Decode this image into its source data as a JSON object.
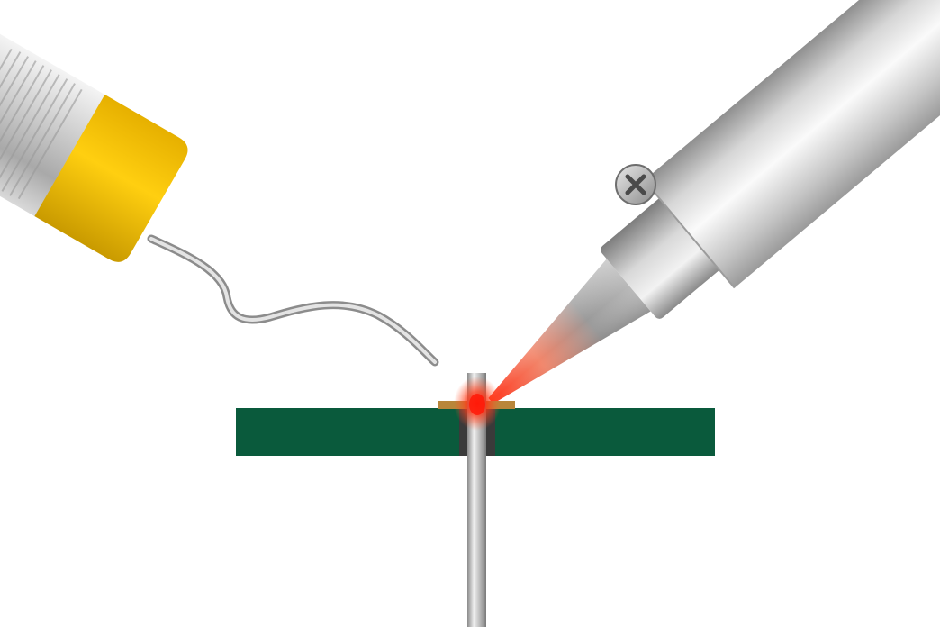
{
  "scene": {
    "elements": [
      "solder-wire-spool",
      "solder-wire",
      "soldering-iron",
      "soldering-iron-tip",
      "circuit-board",
      "copper-pad",
      "component-lead",
      "heat-glow"
    ]
  },
  "colors": {
    "background": "#ffffff",
    "pcb": "#0a5a3c",
    "pad": "#b8863a",
    "spool_cap": "#ffc800",
    "metal": "#c8c8c8",
    "heat": "#ff2a10"
  }
}
